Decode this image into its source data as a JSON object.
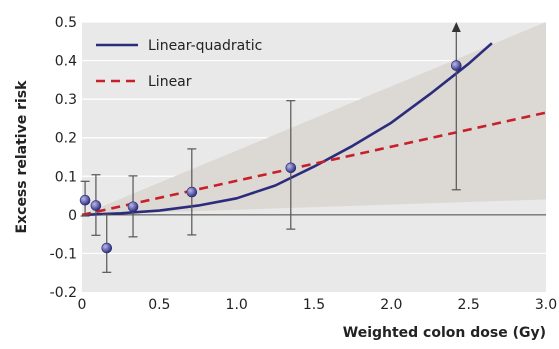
{
  "chart_data": {
    "type": "line",
    "title": "",
    "xlabel": "Weighted colon dose (Gy)",
    "ylabel": "Excess relative risk",
    "xlim": [
      0,
      3.0
    ],
    "ylim": [
      -0.2,
      0.5
    ],
    "x_ticks": [
      0,
      0.5,
      1.0,
      1.5,
      2.0,
      2.5,
      3.0
    ],
    "x_tick_labels": [
      "0",
      "0.5",
      "1.0",
      "1.5",
      "2.0",
      "2.5",
      "3.0"
    ],
    "y_ticks": [
      -0.2,
      -0.1,
      0,
      0.1,
      0.2,
      0.3,
      0.4,
      0.5
    ],
    "y_tick_labels": [
      "-0.2",
      "-0.1",
      "0",
      "0.1",
      "0.2",
      "0.3",
      "0.4",
      "0.5"
    ],
    "grid": "horizontal",
    "legend_position": "top-left",
    "series": [
      {
        "name": "Linear-quadratic",
        "style": "solid",
        "color": "#2b2c7c",
        "x": [
          0,
          0.25,
          0.5,
          0.75,
          1.0,
          1.25,
          1.5,
          1.75,
          2.0,
          2.25,
          2.5,
          2.65
        ],
        "y": [
          0,
          0.004,
          0.011,
          0.024,
          0.043,
          0.076,
          0.125,
          0.179,
          0.239,
          0.313,
          0.392,
          0.445
        ]
      },
      {
        "name": "Linear",
        "style": "dashed",
        "color": "#c8202a",
        "x": [
          0,
          3.0
        ],
        "y": [
          0,
          0.265
        ]
      }
    ],
    "confidence_band": {
      "color": "#dcd8d4",
      "x": [
        0,
        3.0
      ],
      "upper": [
        0,
        0.5
      ],
      "lower": [
        0,
        0.04
      ]
    },
    "points": {
      "color": "#5a5ab0",
      "x": [
        0.02,
        0.09,
        0.16,
        0.33,
        0.71,
        1.35,
        2.42
      ],
      "y": [
        0.038,
        0.024,
        -0.086,
        0.021,
        0.059,
        0.122,
        0.387
      ],
      "err_low": [
        -0.003,
        -0.053,
        -0.149,
        -0.057,
        -0.052,
        -0.037,
        0.065
      ],
      "err_high": [
        0.087,
        0.104,
        0.0,
        0.101,
        0.171,
        0.296,
        0.5
      ],
      "arrow_up": [
        false,
        false,
        false,
        false,
        false,
        false,
        true
      ]
    },
    "colors": {
      "plot_background": "#e9e9e9",
      "gridline": "#ffffff",
      "zero_line": "#444444",
      "error_bar": "#555555"
    }
  }
}
